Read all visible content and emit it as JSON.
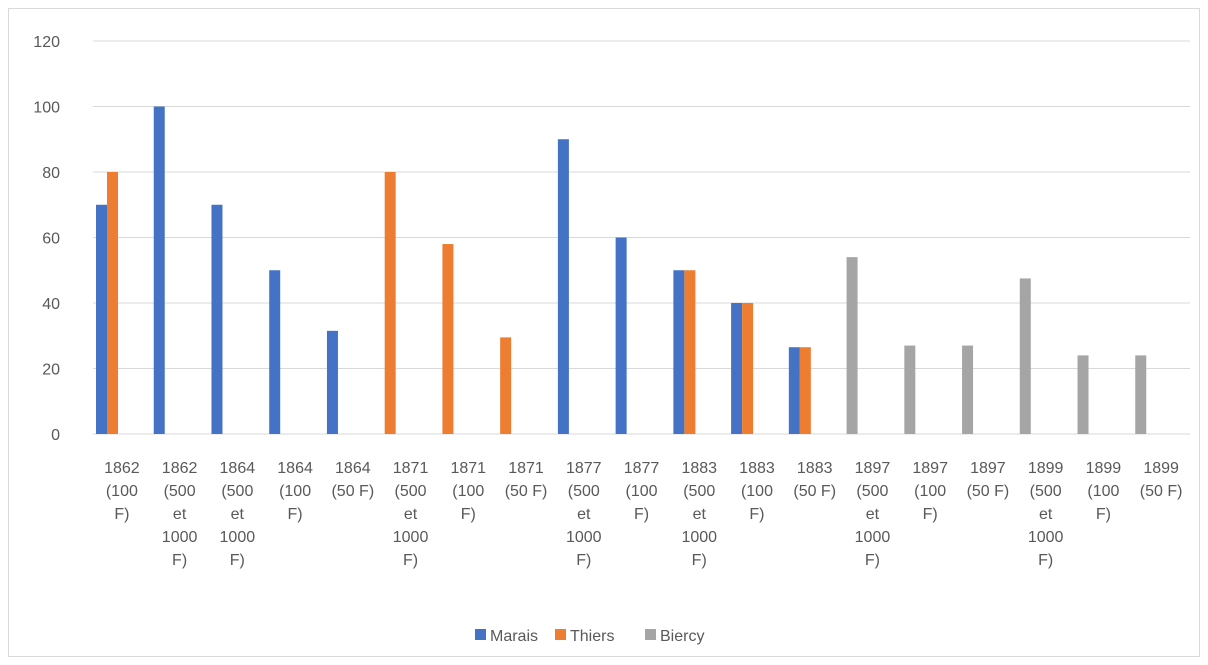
{
  "chart_data": {
    "type": "bar",
    "title": "",
    "xlabel": "",
    "ylabel": "",
    "ylim": [
      0,
      120
    ],
    "yticks": [
      0,
      20,
      40,
      60,
      80,
      100,
      120
    ],
    "grid": true,
    "legend_position": "bottom",
    "categories": [
      [
        "1862",
        "(100",
        "F)"
      ],
      [
        "1862",
        "(500",
        "et",
        "1000",
        "F)"
      ],
      [
        "1864",
        "(500",
        "et",
        "1000",
        "F)"
      ],
      [
        "1864",
        "(100",
        "F)"
      ],
      [
        "1864",
        "(50 F)"
      ],
      [
        "1871",
        "(500",
        "et",
        "1000",
        "F)"
      ],
      [
        "1871",
        "(100",
        "F)"
      ],
      [
        "1871",
        "(50 F)"
      ],
      [
        "1877",
        "(500",
        "et",
        "1000",
        "F)"
      ],
      [
        "1877",
        "(100",
        "F)"
      ],
      [
        "1883",
        "(500",
        "et",
        "1000",
        "F)"
      ],
      [
        "1883",
        "(100",
        "F)"
      ],
      [
        "1883",
        "(50 F)"
      ],
      [
        "1897",
        "(500",
        "et",
        "1000",
        "F)"
      ],
      [
        "1897",
        "(100",
        "F)"
      ],
      [
        "1897",
        "(50 F)"
      ],
      [
        "1899",
        "(500",
        "et",
        "1000",
        "F)"
      ],
      [
        "1899",
        "(100",
        "F)"
      ],
      [
        "1899",
        "(50 F)"
      ]
    ],
    "series": [
      {
        "name": "Marais",
        "color": "#4472c4",
        "values": [
          70,
          100,
          70,
          50,
          31.5,
          null,
          null,
          null,
          90,
          60,
          50,
          40,
          26.5,
          null,
          null,
          null,
          null,
          null,
          null
        ]
      },
      {
        "name": "Thiers",
        "color": "#ed7d31",
        "values": [
          80,
          null,
          null,
          null,
          null,
          80,
          58,
          29.5,
          null,
          null,
          50,
          40,
          26.5,
          null,
          null,
          null,
          null,
          null,
          null
        ]
      },
      {
        "name": "Biercy",
        "color": "#a5a5a5",
        "values": [
          null,
          null,
          null,
          null,
          null,
          null,
          null,
          null,
          null,
          null,
          null,
          null,
          null,
          54,
          27,
          27,
          47.5,
          24,
          24
        ]
      }
    ]
  }
}
